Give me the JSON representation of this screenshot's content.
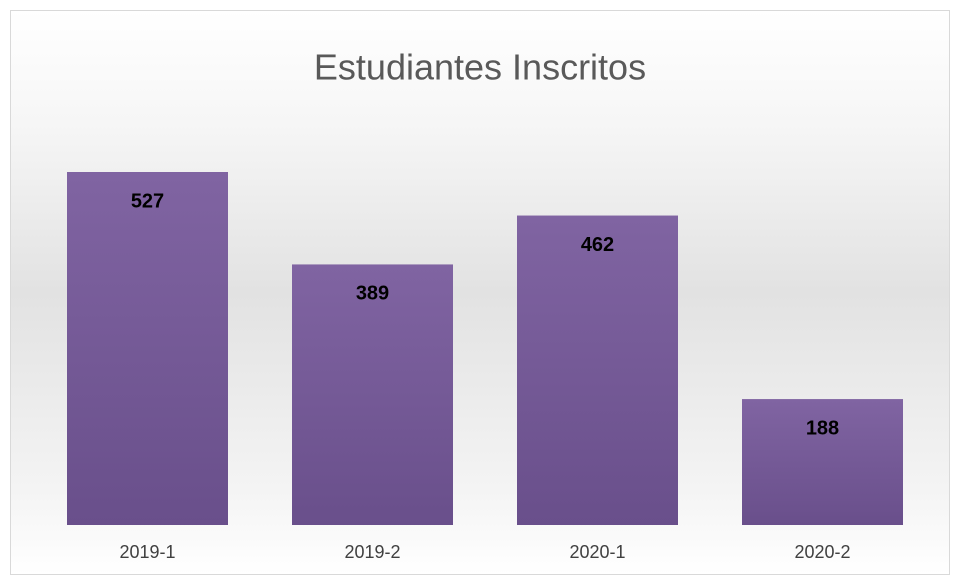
{
  "chart_data": {
    "type": "bar",
    "title": "Estudiantes Inscritos",
    "categories": [
      "2019-1",
      "2019-2",
      "2020-1",
      "2020-2"
    ],
    "values": [
      527,
      389,
      462,
      188
    ],
    "color": "#8064a2"
  }
}
